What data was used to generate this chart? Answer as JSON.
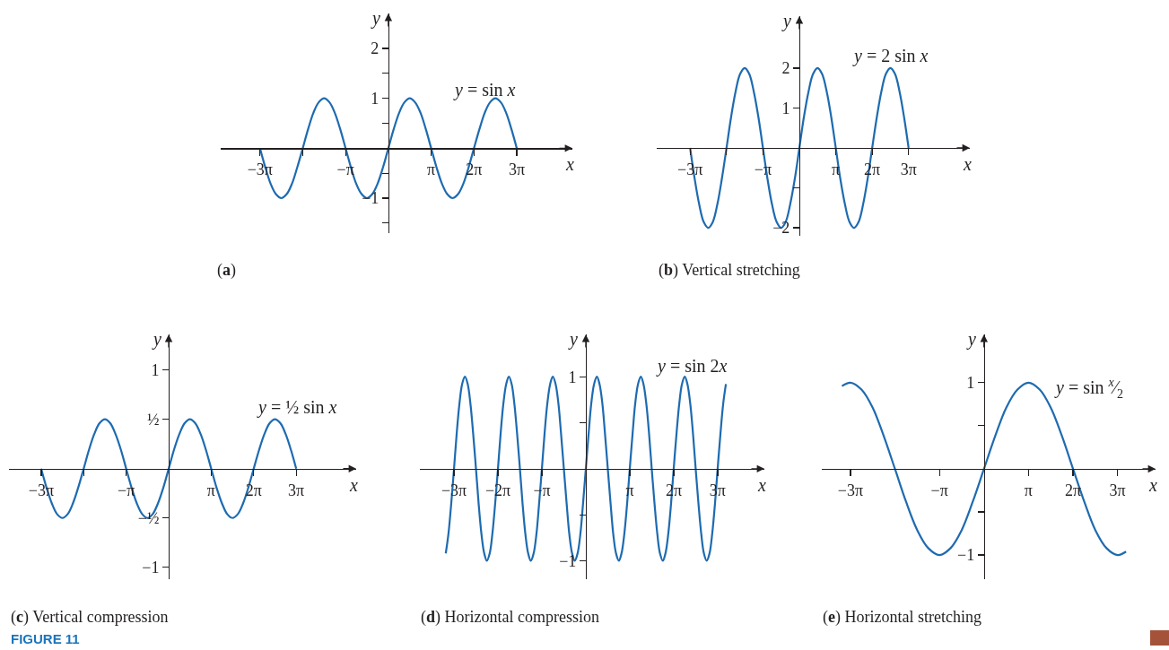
{
  "chart_data": [
    {
      "type": "line",
      "title": "(a)",
      "xlabel": "x",
      "ylabel": "y",
      "xlim": [
        -12.3,
        13.5
      ],
      "ylim": [
        -1.7,
        2.7
      ],
      "xticks": [
        {
          "value": -9.42,
          "label": "−3π"
        },
        {
          "value": -6.28,
          "label": null
        },
        {
          "value": -3.14,
          "label": "−π"
        },
        {
          "value": 3.14,
          "label": "π"
        },
        {
          "value": 6.28,
          "label": "2π"
        },
        {
          "value": 9.42,
          "label": "3π"
        }
      ],
      "yticks": [
        {
          "value": -1.5,
          "label": null
        },
        -1,
        {
          "value": -0.5,
          "label": null
        },
        {
          "value": 0.5,
          "label": null
        },
        1,
        {
          "value": 1.5,
          "label": null
        },
        2
      ],
      "x": [
        -9.42,
        -9.03,
        -8.64,
        -8.25,
        -7.85,
        -7.46,
        -7.07,
        -6.68,
        -6.28,
        -5.89,
        -5.5,
        -5.11,
        -4.71,
        -4.32,
        -3.93,
        -3.53,
        -3.14,
        -2.75,
        -2.36,
        -1.96,
        -1.57,
        -1.18,
        -0.79,
        -0.39,
        0,
        0.39,
        0.79,
        1.18,
        1.57,
        1.96,
        2.36,
        2.75,
        3.14,
        3.53,
        3.93,
        4.32,
        4.71,
        5.11,
        5.5,
        5.89,
        6.28,
        6.68,
        7.07,
        7.46,
        7.85,
        8.25,
        8.64,
        9.03,
        9.42
      ],
      "series": [
        {
          "name": "y = sin x",
          "color": "#1e6bb0",
          "values": [
            0,
            -0.38,
            -0.71,
            -0.92,
            -1,
            -0.92,
            -0.71,
            -0.38,
            0,
            0.38,
            0.71,
            0.92,
            1,
            0.92,
            0.71,
            0.38,
            0,
            -0.38,
            -0.71,
            -0.92,
            -1,
            -0.92,
            -0.71,
            -0.38,
            0,
            0.38,
            0.71,
            0.92,
            1,
            0.92,
            0.71,
            0.38,
            0,
            -0.38,
            -0.71,
            -0.92,
            -1,
            -0.92,
            -0.71,
            -0.38,
            0,
            0.38,
            0.71,
            0.92,
            1,
            0.92,
            0.71,
            0.38,
            0
          ]
        }
      ]
    },
    {
      "type": "line",
      "title": "(b) Vertical stretching",
      "xlabel": "x",
      "ylabel": "y",
      "xlim": [
        -12.3,
        14.7
      ],
      "ylim": [
        -2.2,
        3.3
      ],
      "xticks": [
        {
          "value": -9.42,
          "label": "−3π"
        },
        {
          "value": -6.28,
          "label": null
        },
        {
          "value": -3.14,
          "label": "−π"
        },
        {
          "value": 3.14,
          "label": "π"
        },
        {
          "value": 6.28,
          "label": "2π"
        },
        {
          "value": 9.42,
          "label": "3π"
        }
      ],
      "yticks": [
        -2,
        {
          "value": -1,
          "label": null
        },
        1,
        2
      ],
      "x": [
        -9.42,
        -9.03,
        -8.64,
        -8.25,
        -7.85,
        -7.46,
        -7.07,
        -6.68,
        -6.28,
        -5.89,
        -5.5,
        -5.11,
        -4.71,
        -4.32,
        -3.93,
        -3.53,
        -3.14,
        -2.75,
        -2.36,
        -1.96,
        -1.57,
        -1.18,
        -0.79,
        -0.39,
        0,
        0.39,
        0.79,
        1.18,
        1.57,
        1.96,
        2.36,
        2.75,
        3.14,
        3.53,
        3.93,
        4.32,
        4.71,
        5.11,
        5.5,
        5.89,
        6.28,
        6.68,
        7.07,
        7.46,
        7.85,
        8.25,
        8.64,
        9.03,
        9.42
      ],
      "series": [
        {
          "name": "y = 2 sin x",
          "color": "#1e6bb0",
          "values": [
            0,
            -0.77,
            -1.41,
            -1.85,
            -2,
            -1.85,
            -1.41,
            -0.77,
            0,
            0.77,
            1.41,
            1.85,
            2,
            1.85,
            1.41,
            0.77,
            0,
            -0.77,
            -1.41,
            -1.85,
            -2,
            -1.85,
            -1.41,
            -0.77,
            0,
            0.77,
            1.41,
            1.85,
            2,
            1.85,
            1.41,
            0.77,
            0,
            -0.77,
            -1.41,
            -1.85,
            -2,
            -1.85,
            -1.41,
            -0.77,
            0,
            0.77,
            1.41,
            1.85,
            2,
            1.85,
            1.41,
            0.77,
            0
          ]
        }
      ]
    },
    {
      "type": "line",
      "title": "(c) Vertical compression",
      "xlabel": "x",
      "ylabel": "y",
      "annotations": [
        "FIGURE 11"
      ],
      "xlim": [
        -11.8,
        13.85
      ],
      "ylim": [
        -1.12,
        1.36
      ],
      "xticks": [
        {
          "value": -9.42,
          "label": "−3π"
        },
        {
          "value": -6.28,
          "label": null
        },
        {
          "value": -3.14,
          "label": "−π"
        },
        {
          "value": 3.14,
          "label": "π"
        },
        {
          "value": 6.28,
          "label": "2π"
        },
        {
          "value": 9.42,
          "label": "3π"
        }
      ],
      "yticks": [
        -1,
        {
          "value": -0.5,
          "label": "−½"
        },
        {
          "value": 0.5,
          "label": "½"
        },
        1
      ],
      "x": [
        -9.42,
        -9.03,
        -8.64,
        -8.25,
        -7.85,
        -7.46,
        -7.07,
        -6.68,
        -6.28,
        -5.89,
        -5.5,
        -5.11,
        -4.71,
        -4.32,
        -3.93,
        -3.53,
        -3.14,
        -2.75,
        -2.36,
        -1.96,
        -1.57,
        -1.18,
        -0.79,
        -0.39,
        0,
        0.39,
        0.79,
        1.18,
        1.57,
        1.96,
        2.36,
        2.75,
        3.14,
        3.53,
        3.93,
        4.32,
        4.71,
        5.11,
        5.5,
        5.89,
        6.28,
        6.68,
        7.07,
        7.46,
        7.85,
        8.25,
        8.64,
        9.03,
        9.42
      ],
      "series": [
        {
          "name": "y = ½ sin x",
          "color": "#1e6bb0",
          "values": [
            0,
            -0.19,
            -0.35,
            -0.46,
            -0.5,
            -0.46,
            -0.35,
            -0.19,
            0,
            0.19,
            0.35,
            0.46,
            0.5,
            0.46,
            0.35,
            0.19,
            0,
            -0.19,
            -0.35,
            -0.46,
            -0.5,
            -0.46,
            -0.35,
            -0.19,
            0,
            0.19,
            0.35,
            0.46,
            0.5,
            0.46,
            0.35,
            0.19,
            0,
            -0.19,
            -0.35,
            -0.46,
            -0.5,
            -0.46,
            -0.35,
            -0.19,
            0,
            0.19,
            0.35,
            0.46,
            0.5,
            0.46,
            0.35,
            0.19,
            0
          ]
        }
      ]
    },
    {
      "type": "line",
      "title": "(d) Horizontal compression",
      "xlabel": "x",
      "ylabel": "y",
      "xlim": [
        -11.86,
        12.76
      ],
      "ylim": [
        -1.2,
        1.46
      ],
      "xticks": [
        {
          "value": -9.42,
          "label": "−3π"
        },
        {
          "value": -6.28,
          "label": "−2π"
        },
        {
          "value": -3.14,
          "label": "−π"
        },
        {
          "value": 3.14,
          "label": "π"
        },
        {
          "value": 6.28,
          "label": "2π"
        },
        {
          "value": 9.42,
          "label": "3π"
        }
      ],
      "yticks": [
        -1,
        {
          "value": -0.5,
          "label": null
        },
        {
          "value": 0.5,
          "label": null
        },
        1
      ],
      "x": [
        -10.01,
        -9.82,
        -9.62,
        -9.42,
        -9.23,
        -9.03,
        -8.84,
        -8.64,
        -8.44,
        -8.25,
        -8.05,
        -7.85,
        -7.66,
        -7.46,
        -7.26,
        -7.07,
        -6.87,
        -6.68,
        -6.48,
        -6.28,
        -6.09,
        -5.89,
        -5.69,
        -5.5,
        -5.3,
        -5.11,
        -4.91,
        -4.71,
        -4.52,
        -4.32,
        -4.12,
        -3.93,
        -3.73,
        -3.53,
        -3.34,
        -3.14,
        -2.95,
        -2.75,
        -2.55,
        -2.36,
        -2.16,
        -1.96,
        -1.77,
        -1.57,
        -1.37,
        -1.18,
        -0.98,
        -0.79,
        -0.59,
        -0.39,
        -0.2,
        0,
        0.2,
        0.39,
        0.59,
        0.79,
        0.98,
        1.18,
        1.37,
        1.57,
        1.77,
        1.96,
        2.16,
        2.36,
        2.55,
        2.75,
        2.95,
        3.14,
        3.34,
        3.53,
        3.73,
        3.93,
        4.12,
        4.32,
        4.52,
        4.71,
        4.91,
        5.11,
        5.3,
        5.5,
        5.69,
        5.89,
        6.09,
        6.28,
        6.48,
        6.68,
        6.87,
        7.07,
        7.26,
        7.46,
        7.66,
        7.85,
        8.05,
        8.25,
        8.44,
        8.64,
        8.84,
        9.03,
        9.23,
        9.42,
        9.62,
        9.82,
        10.01
      ],
      "series": [
        {
          "name": "y = sin 2x",
          "color": "#1e6bb0",
          "values": [
            -0.92,
            -0.71,
            -0.38,
            0,
            0.38,
            0.71,
            0.92,
            1,
            0.92,
            0.71,
            0.38,
            0,
            -0.38,
            -0.71,
            -0.92,
            -1,
            -0.92,
            -0.71,
            -0.38,
            0,
            0.38,
            0.71,
            0.92,
            1,
            0.92,
            0.71,
            0.38,
            0,
            -0.38,
            -0.71,
            -0.92,
            -1,
            -0.92,
            -0.71,
            -0.38,
            0,
            0.38,
            0.71,
            0.92,
            1,
            0.92,
            0.71,
            0.38,
            0,
            -0.38,
            -0.71,
            -0.92,
            -1,
            -0.92,
            -0.71,
            -0.38,
            0,
            0.38,
            0.71,
            0.92,
            1,
            0.92,
            0.71,
            0.38,
            0,
            -0.38,
            -0.71,
            -0.92,
            -1,
            -0.92,
            -0.71,
            -0.38,
            0,
            0.38,
            0.71,
            0.92,
            1,
            0.92,
            0.71,
            0.38,
            0,
            -0.38,
            -0.71,
            -0.92,
            -1,
            -0.92,
            -0.71,
            -0.38,
            0,
            0.38,
            0.71,
            0.92,
            1,
            0.92,
            0.71,
            0.38,
            0,
            -0.38,
            -0.71,
            -0.92,
            -1,
            -0.92,
            -0.71,
            -0.38,
            0,
            0.38,
            0.71,
            0.92
          ]
        }
      ]
    },
    {
      "type": "line",
      "title": "(e) Horizontal stretching",
      "xlabel": "x",
      "ylabel": "y",
      "xlim": [
        -11.44,
        12.1
      ],
      "ylim": [
        -1.28,
        1.56
      ],
      "xticks": [
        {
          "value": -9.42,
          "label": "−3π"
        },
        {
          "value": -3.14,
          "label": "−π"
        },
        {
          "value": 3.14,
          "label": "π"
        },
        {
          "value": 6.28,
          "label": "2π"
        },
        {
          "value": 9.42,
          "label": "3π"
        }
      ],
      "yticks": [
        -1,
        {
          "value": -0.5,
          "label": null
        },
        {
          "value": 0.5,
          "label": null
        },
        1
      ],
      "x": [
        -10.02,
        -9.42,
        -8.64,
        -7.85,
        -7.07,
        -6.28,
        -5.5,
        -4.71,
        -3.93,
        -3.14,
        -2.36,
        -1.57,
        -0.79,
        0,
        0.79,
        1.57,
        2.36,
        3.14,
        3.93,
        4.71,
        5.5,
        6.28,
        7.07,
        7.85,
        8.64,
        9.42,
        10.02
      ],
      "series": [
        {
          "name": "y = sin $^{x}$⁄$_{2}$",
          "color": "#1e6bb0",
          "values": [
            0.96,
            1,
            0.92,
            0.71,
            0.38,
            0,
            -0.38,
            -0.71,
            -0.92,
            -1,
            -0.92,
            -0.71,
            -0.38,
            0,
            0.38,
            0.71,
            0.92,
            1,
            0.92,
            0.71,
            0.38,
            0,
            -0.38,
            -0.71,
            -0.92,
            -1,
            -0.96
          ]
        }
      ]
    }
  ]
}
